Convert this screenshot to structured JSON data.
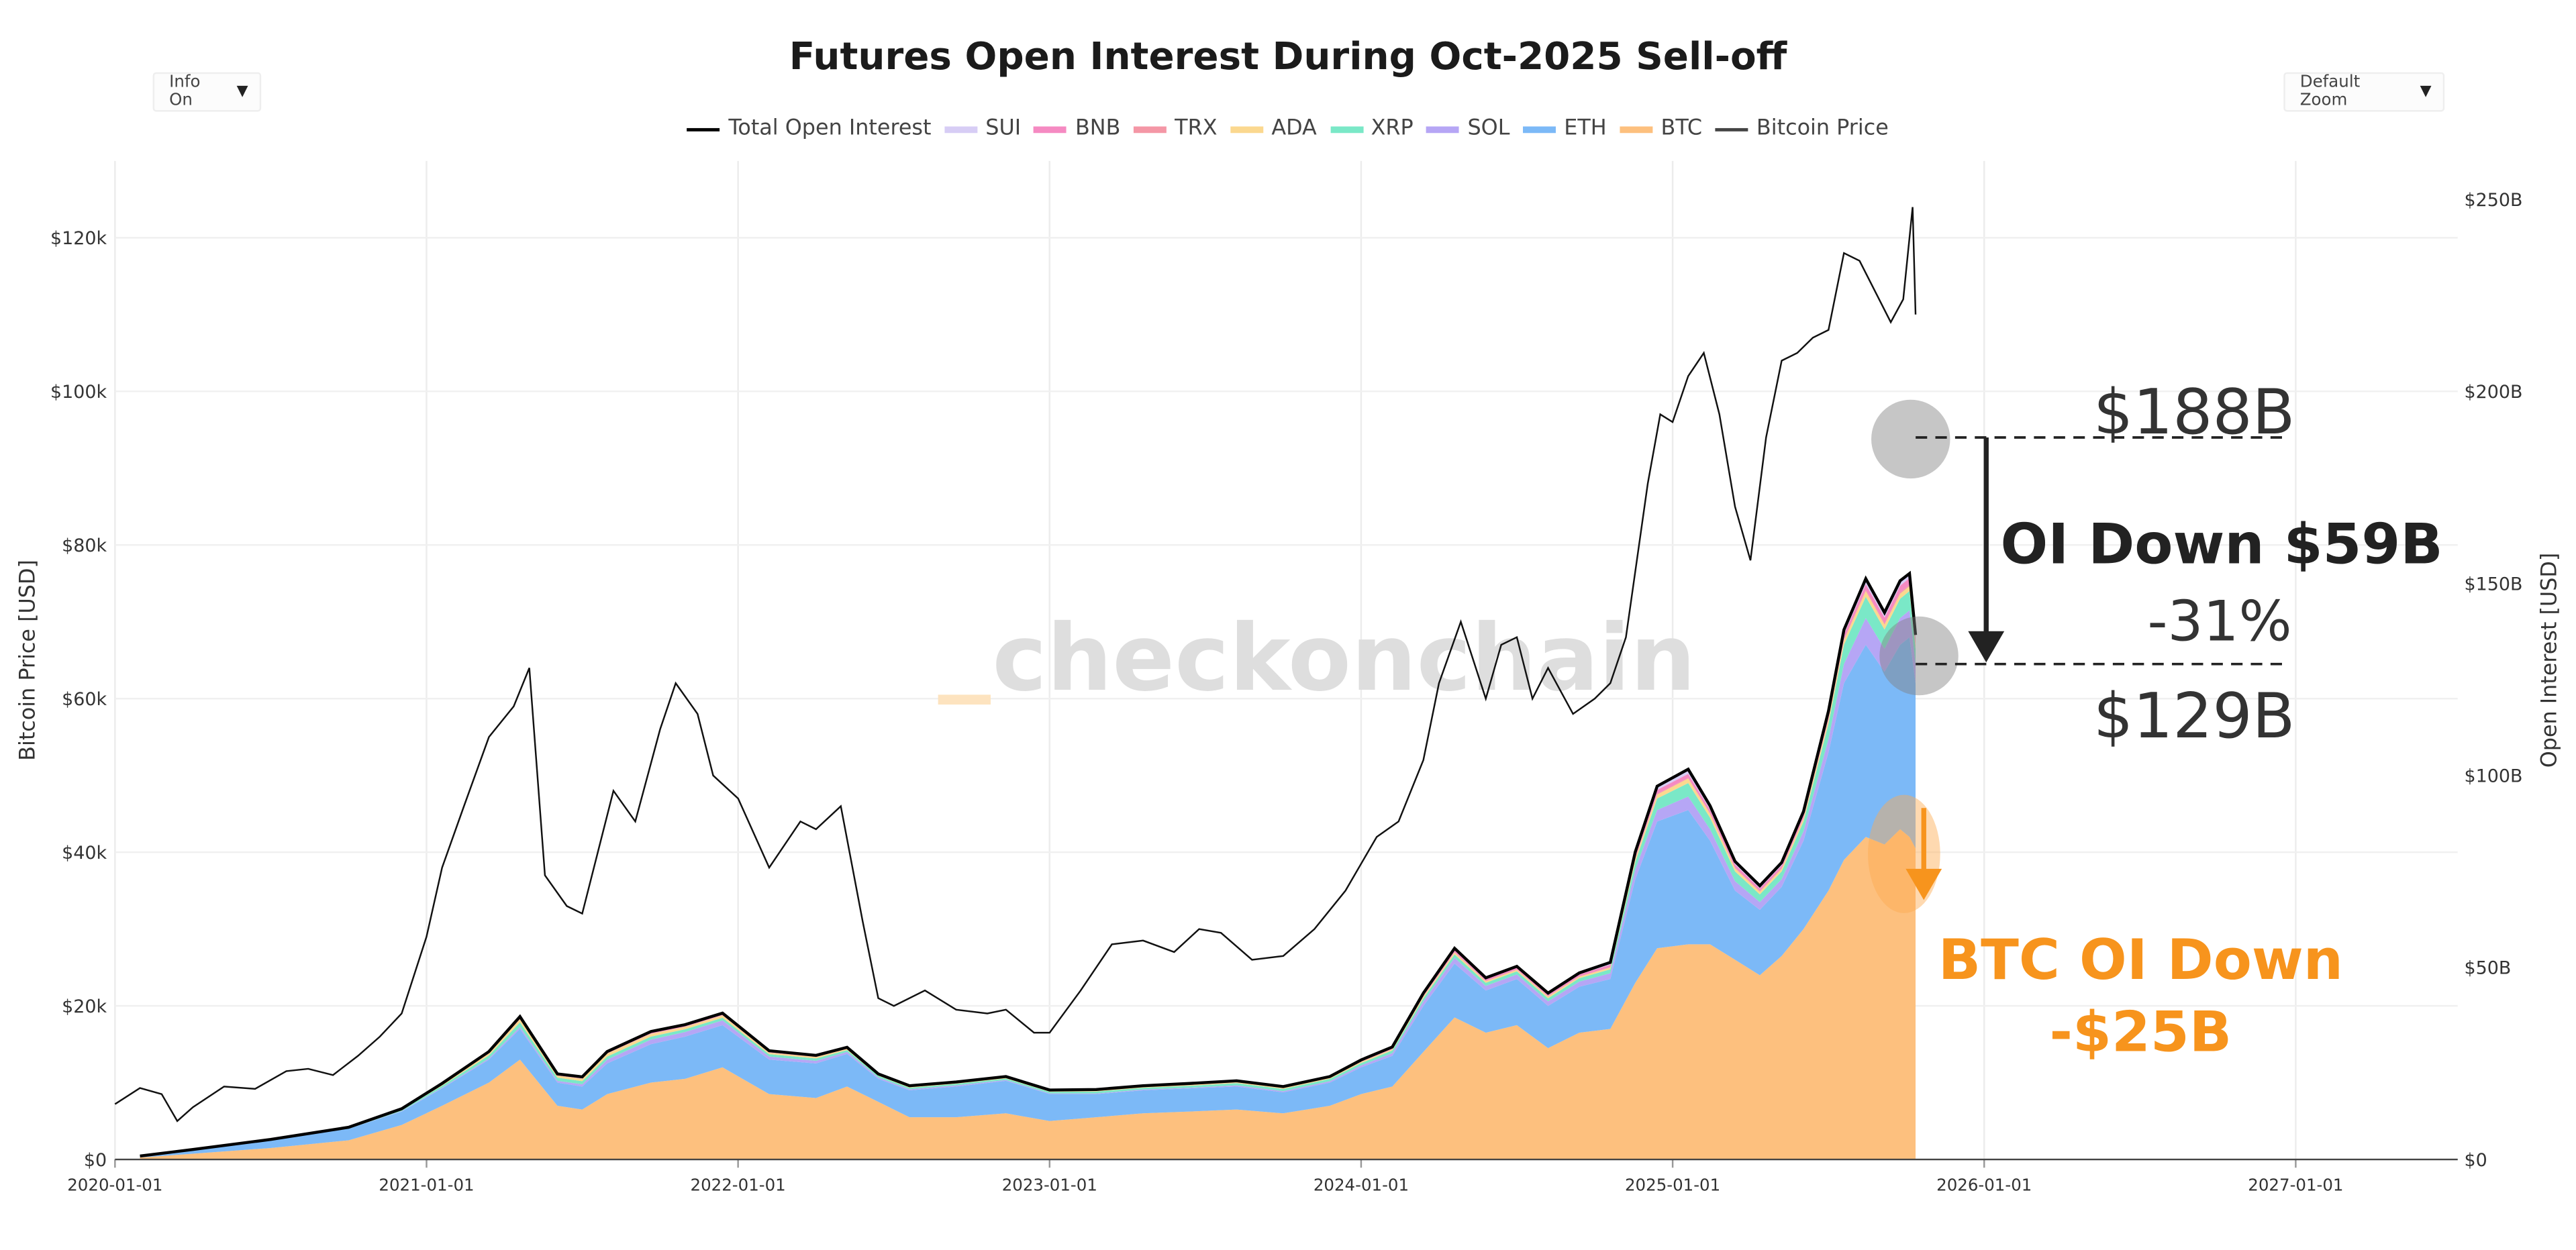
{
  "header": {
    "title": "Futures Open Interest During Oct-2025 Sell-off",
    "info_dropdown": "Info On",
    "zoom_dropdown": "Default Zoom"
  },
  "legend": [
    {
      "label": "Total Open Interest",
      "color": "#000000",
      "kind": "line"
    },
    {
      "label": "SUI",
      "color": "#d7cdf5",
      "kind": "area"
    },
    {
      "label": "BNB",
      "color": "#f58ac2",
      "kind": "area"
    },
    {
      "label": "TRX",
      "color": "#f497a6",
      "kind": "area"
    },
    {
      "label": "ADA",
      "color": "#fbd88f",
      "kind": "area"
    },
    {
      "label": "XRP",
      "color": "#7ae8c7",
      "kind": "area"
    },
    {
      "label": "SOL",
      "color": "#b6a6f5",
      "kind": "area"
    },
    {
      "label": "ETH",
      "color": "#7cb9f7",
      "kind": "area"
    },
    {
      "label": "BTC",
      "color": "#fdc07e",
      "kind": "area"
    },
    {
      "label": "Bitcoin Price",
      "color": "#444444",
      "kind": "line"
    }
  ],
  "watermark": {
    "underscore": "_",
    "text": "checkonchain"
  },
  "chart_data": {
    "type": "area",
    "title": "Futures Open Interest During Oct-2025 Sell-off",
    "xlabel": "",
    "ylabel_left": "Bitcoin Price [USD]",
    "ylabel_right": "Open Interest [USD]",
    "x_ticks": [
      "2020-01-01",
      "2021-01-01",
      "2022-01-01",
      "2023-01-01",
      "2024-01-01",
      "2025-01-01",
      "2026-01-01",
      "2027-01-01"
    ],
    "x_range_years": [
      2020.0,
      2027.52
    ],
    "y_left_ticks": [
      "$0",
      "$20k",
      "$40k",
      "$60k",
      "$80k",
      "$100k",
      "$120k"
    ],
    "y_left_range": [
      0,
      130000
    ],
    "y_right_ticks": [
      "$0",
      "$50B",
      "$100B",
      "$150B",
      "$200B",
      "$250B"
    ],
    "y_right_range": [
      0,
      260
    ],
    "x": [
      2020.08,
      2020.25,
      2020.5,
      2020.75,
      2020.92,
      2021.05,
      2021.2,
      2021.3,
      2021.42,
      2021.5,
      2021.58,
      2021.72,
      2021.83,
      2021.95,
      2022.1,
      2022.25,
      2022.35,
      2022.45,
      2022.55,
      2022.7,
      2022.86,
      2023.0,
      2023.15,
      2023.3,
      2023.45,
      2023.6,
      2023.75,
      2023.9,
      2024.0,
      2024.1,
      2024.2,
      2024.3,
      2024.4,
      2024.5,
      2024.6,
      2024.7,
      2024.8,
      2024.88,
      2024.95,
      2025.05,
      2025.12,
      2025.2,
      2025.28,
      2025.35,
      2025.42,
      2025.5,
      2025.55,
      2025.62,
      2025.68,
      2025.73,
      2025.76,
      2025.78
    ],
    "series": [
      {
        "name": "BTC",
        "values": [
          0.5,
          1.5,
          3.0,
          5.0,
          9.0,
          14.0,
          20.0,
          26.0,
          14.0,
          13.0,
          17.0,
          20.0,
          21.0,
          24.0,
          17.0,
          16.0,
          19.0,
          15.0,
          11.0,
          11.0,
          12.0,
          10.0,
          11.0,
          12.0,
          12.5,
          13.0,
          12.0,
          14.0,
          17.0,
          19.0,
          28.0,
          37.0,
          33.0,
          35.0,
          29.0,
          33.0,
          34.0,
          46.0,
          55.0,
          56.0,
          56.0,
          52.0,
          48.0,
          53.0,
          60.0,
          70.0,
          78.0,
          84.0,
          82.0,
          86.0,
          84.0,
          81.0
        ]
      },
      {
        "name": "ETH",
        "values": [
          0.3,
          1.0,
          2.0,
          3.0,
          3.5,
          4.5,
          6.0,
          8.0,
          6.0,
          6.0,
          8.0,
          10.0,
          11.0,
          11.0,
          9.0,
          9.0,
          8.5,
          6.0,
          7.0,
          8.0,
          8.5,
          7.0,
          6.0,
          6.0,
          6.0,
          6.0,
          5.5,
          6.0,
          7.0,
          8.0,
          12.0,
          14.0,
          11.0,
          12.0,
          11.0,
          12.0,
          13.0,
          27.0,
          33.0,
          35.0,
          27.0,
          18.0,
          17.0,
          18.0,
          23.0,
          36.0,
          46.0,
          50.0,
          45.0,
          48.0,
          52.0,
          43.0
        ]
      },
      {
        "name": "SOL",
        "values": [
          0.0,
          0.0,
          0.0,
          0.0,
          0.1,
          0.2,
          0.3,
          0.5,
          0.5,
          0.6,
          1.0,
          1.2,
          1.2,
          1.2,
          0.8,
          0.7,
          0.5,
          0.4,
          0.3,
          0.3,
          0.2,
          0.2,
          0.2,
          0.2,
          0.2,
          0.3,
          0.3,
          0.4,
          0.5,
          0.7,
          1.2,
          1.5,
          1.2,
          1.2,
          1.2,
          1.3,
          1.5,
          2.5,
          3.0,
          3.5,
          3.0,
          2.5,
          2.0,
          2.0,
          2.5,
          3.5,
          5.0,
          7.0,
          6.0,
          7.0,
          7.0,
          5.0
        ]
      },
      {
        "name": "XRP",
        "values": [
          0.1,
          0.1,
          0.2,
          0.2,
          0.3,
          0.5,
          0.8,
          1.2,
          0.8,
          0.8,
          0.8,
          0.8,
          0.7,
          0.7,
          0.6,
          0.6,
          0.5,
          0.4,
          0.4,
          0.4,
          0.4,
          0.4,
          0.5,
          0.5,
          0.5,
          0.6,
          0.6,
          0.6,
          0.6,
          0.7,
          0.8,
          0.9,
          0.8,
          0.8,
          0.8,
          0.9,
          1.0,
          2.0,
          3.0,
          3.5,
          3.0,
          2.5,
          2.0,
          2.0,
          2.5,
          4.0,
          5.0,
          5.5,
          5.0,
          5.0,
          5.0,
          4.0
        ]
      },
      {
        "name": "ADA",
        "values": [
          0.0,
          0.0,
          0.0,
          0.1,
          0.2,
          0.3,
          0.5,
          0.8,
          0.5,
          0.6,
          0.8,
          0.7,
          0.6,
          0.6,
          0.4,
          0.4,
          0.3,
          0.2,
          0.2,
          0.2,
          0.2,
          0.2,
          0.2,
          0.2,
          0.2,
          0.2,
          0.2,
          0.2,
          0.3,
          0.3,
          0.4,
          0.5,
          0.4,
          0.4,
          0.4,
          0.4,
          0.5,
          0.8,
          1.0,
          1.2,
          1.0,
          0.8,
          0.7,
          0.7,
          0.8,
          1.0,
          1.2,
          1.5,
          1.3,
          1.3,
          1.3,
          1.0
        ]
      },
      {
        "name": "TRX",
        "values": [
          0.0,
          0.0,
          0.0,
          0.0,
          0.0,
          0.1,
          0.1,
          0.1,
          0.1,
          0.1,
          0.1,
          0.1,
          0.1,
          0.1,
          0.1,
          0.1,
          0.1,
          0.1,
          0.1,
          0.1,
          0.1,
          0.1,
          0.1,
          0.1,
          0.1,
          0.1,
          0.1,
          0.1,
          0.1,
          0.1,
          0.1,
          0.1,
          0.1,
          0.1,
          0.1,
          0.1,
          0.1,
          0.2,
          0.2,
          0.2,
          0.2,
          0.2,
          0.2,
          0.2,
          0.2,
          0.3,
          0.3,
          0.3,
          0.3,
          0.3,
          0.3,
          0.3
        ]
      },
      {
        "name": "BNB",
        "values": [
          0.0,
          0.0,
          0.0,
          0.1,
          0.1,
          0.2,
          0.4,
          0.6,
          0.4,
          0.4,
          0.4,
          0.5,
          0.5,
          0.5,
          0.4,
          0.3,
          0.3,
          0.2,
          0.2,
          0.2,
          0.2,
          0.2,
          0.2,
          0.2,
          0.2,
          0.2,
          0.2,
          0.2,
          0.3,
          0.3,
          0.5,
          0.6,
          0.5,
          0.5,
          0.5,
          0.5,
          0.6,
          0.8,
          1.0,
          1.0,
          0.9,
          0.8,
          0.7,
          0.7,
          0.8,
          1.0,
          1.2,
          1.5,
          1.5,
          1.8,
          1.8,
          1.5
        ]
      },
      {
        "name": "SUI",
        "values": [
          0,
          0,
          0,
          0,
          0,
          0,
          0,
          0,
          0,
          0,
          0,
          0,
          0,
          0,
          0,
          0,
          0,
          0,
          0,
          0,
          0,
          0,
          0,
          0,
          0.1,
          0.1,
          0.1,
          0.1,
          0.1,
          0.2,
          0.3,
          0.4,
          0.3,
          0.3,
          0.3,
          0.4,
          0.6,
          0.8,
          1.0,
          1.2,
          1.0,
          0.8,
          0.7,
          0.7,
          0.8,
          1.0,
          1.2,
          1.4,
          1.3,
          1.3,
          1.2,
          0.8
        ]
      }
    ],
    "bitcoin_price": {
      "x": [
        2020.0,
        2020.08,
        2020.15,
        2020.2,
        2020.25,
        2020.35,
        2020.45,
        2020.55,
        2020.62,
        2020.7,
        2020.78,
        2020.85,
        2020.92,
        2021.0,
        2021.05,
        2021.12,
        2021.2,
        2021.28,
        2021.33,
        2021.38,
        2021.45,
        2021.5,
        2021.55,
        2021.6,
        2021.67,
        2021.75,
        2021.8,
        2021.87,
        2021.92,
        2022.0,
        2022.1,
        2022.2,
        2022.25,
        2022.33,
        2022.4,
        2022.45,
        2022.5,
        2022.6,
        2022.7,
        2022.8,
        2022.86,
        2022.95,
        2023.0,
        2023.1,
        2023.2,
        2023.3,
        2023.4,
        2023.48,
        2023.55,
        2023.65,
        2023.75,
        2023.85,
        2023.95,
        2024.05,
        2024.12,
        2024.2,
        2024.25,
        2024.32,
        2024.4,
        2024.45,
        2024.5,
        2024.55,
        2024.6,
        2024.68,
        2024.75,
        2024.8,
        2024.85,
        2024.92,
        2024.96,
        2025.0,
        2025.05,
        2025.1,
        2025.15,
        2025.2,
        2025.25,
        2025.3,
        2025.35,
        2025.4,
        2025.45,
        2025.5,
        2025.55,
        2025.6,
        2025.65,
        2025.7,
        2025.74,
        2025.77,
        2025.78
      ],
      "values": [
        7200,
        9300,
        8500,
        5000,
        6800,
        9500,
        9200,
        11500,
        11800,
        11000,
        13500,
        16000,
        19000,
        29000,
        38000,
        46000,
        55000,
        59000,
        64000,
        37000,
        33000,
        32000,
        40000,
        48000,
        44000,
        56000,
        62000,
        58000,
        50000,
        47000,
        38000,
        44000,
        43000,
        46000,
        31000,
        21000,
        20000,
        22000,
        19500,
        19000,
        19500,
        16500,
        16500,
        22000,
        28000,
        28500,
        27000,
        30000,
        29500,
        26000,
        26500,
        30000,
        35000,
        42000,
        44000,
        52000,
        62000,
        70000,
        60000,
        67000,
        68000,
        60000,
        64000,
        58000,
        60000,
        62000,
        68000,
        88000,
        97000,
        96000,
        102000,
        105000,
        97000,
        85000,
        78000,
        94000,
        104000,
        105000,
        107000,
        108000,
        118000,
        117000,
        113000,
        109000,
        112000,
        124000,
        110000
      ]
    },
    "annotations": {
      "oi_peak_label": "$188B",
      "oi_peak_value": 188,
      "oi_trough_label": "$129B",
      "oi_trough_value": 129,
      "oi_drop_label": "OI Down $59B",
      "oi_drop_pct": "-31%",
      "btc_oi_drop_line1": "BTC OI Down",
      "btc_oi_drop_line2": "-$25B",
      "event_x": 2025.78
    }
  }
}
